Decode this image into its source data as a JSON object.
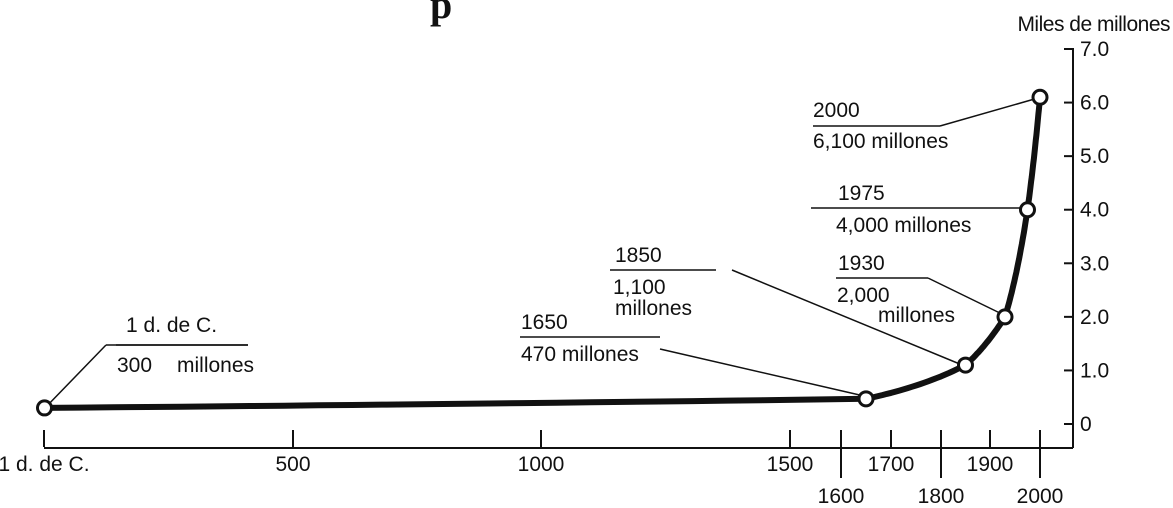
{
  "chart_data": {
    "type": "line",
    "title_fragment": "p",
    "y_unit": "Miles de millones",
    "ylim": [
      0,
      7.0
    ],
    "grid": false,
    "x_ticks_upper": [
      "1 d. de C.",
      "500",
      "1000",
      "1500",
      "1700",
      "1900"
    ],
    "x_ticks_lower": [
      "1600",
      "1800",
      "2000"
    ],
    "y_ticks": [
      "0",
      "1.0",
      "2.0",
      "3.0",
      "4.0",
      "5.0",
      "6.0",
      "7.0"
    ],
    "series": [
      {
        "x": [
          1,
          1650,
          1850,
          1930,
          1975,
          2000
        ],
        "y": [
          0.3,
          0.47,
          1.1,
          2.0,
          4.0,
          6.1
        ]
      }
    ],
    "annotations": [
      {
        "year": "1 d. de C.",
        "value": "300",
        "unit": "millones"
      },
      {
        "year": "1650",
        "value": "470 millones",
        "unit": ""
      },
      {
        "year": "1850",
        "value": "1,100",
        "unit": "millones"
      },
      {
        "year": "1930",
        "value": "2,000",
        "unit": "millones"
      },
      {
        "year": "1975",
        "value": "4,000 millones",
        "unit": ""
      },
      {
        "year": "2000",
        "value": "6,100 millones",
        "unit": ""
      }
    ]
  }
}
